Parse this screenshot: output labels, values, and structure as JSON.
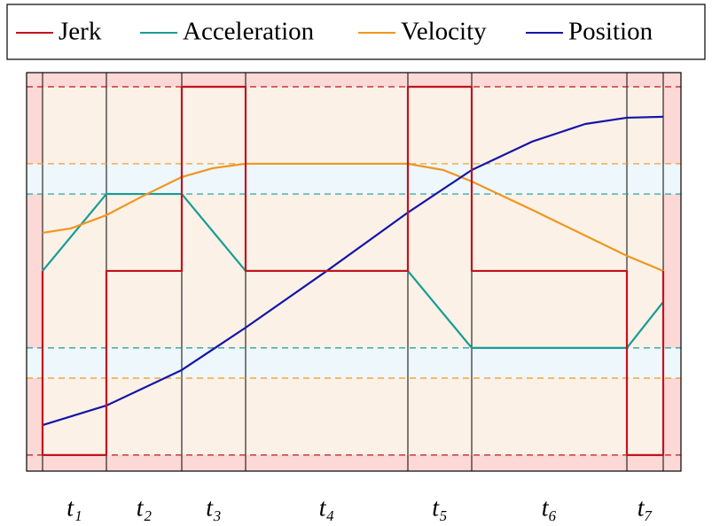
{
  "chart_data": {
    "type": "line",
    "categories": [
      "t₁",
      "t₂",
      "t₃",
      "t₄",
      "t₅",
      "t₆",
      "t₇"
    ],
    "xlim": [
      -0.18,
      7.2
    ],
    "ylim": [
      -1.087,
      1.077
    ],
    "legend": "top",
    "series": [
      {
        "name": "Jerk",
        "color": "#c0141c",
        "x": [
          0,
          0,
          0.72,
          0.72,
          1.57,
          1.57,
          2.29,
          2.29,
          4.12,
          4.12,
          4.84,
          4.84,
          6.59,
          6.59,
          7.0,
          7.0
        ],
        "values": [
          0,
          -1,
          -1,
          0,
          0,
          1,
          1,
          0,
          0,
          1,
          1,
          0,
          0,
          -1,
          -1,
          0
        ]
      },
      {
        "name": "Acceleration",
        "color": "#179c96",
        "x": [
          0,
          0.72,
          1.57,
          2.29,
          4.12,
          4.84,
          6.59,
          7.0
        ],
        "values": [
          0,
          0.418,
          0.418,
          0,
          0,
          -0.418,
          -0.418,
          -0.168
        ]
      },
      {
        "name": "Velocity",
        "color": "#f0961e",
        "x": [
          0,
          0.32,
          0.72,
          1.12,
          1.57,
          1.92,
          2.29,
          4.12,
          4.52,
          4.84,
          5.52,
          6.59,
          7.0
        ],
        "values": [
          0.207,
          0.231,
          0.303,
          0.404,
          0.51,
          0.558,
          0.582,
          0.582,
          0.548,
          0.486,
          0.332,
          0.082,
          0
        ]
      },
      {
        "name": "Position",
        "color": "#1515a8",
        "x": [
          0,
          0.72,
          1.57,
          2.29,
          3.22,
          4.12,
          4.84,
          5.52,
          6.12,
          6.59,
          7.0
        ],
        "values": [
          -0.837,
          -0.731,
          -0.538,
          -0.308,
          0.005,
          0.317,
          0.548,
          0.702,
          0.798,
          0.832,
          0.837
        ]
      }
    ]
  }
}
